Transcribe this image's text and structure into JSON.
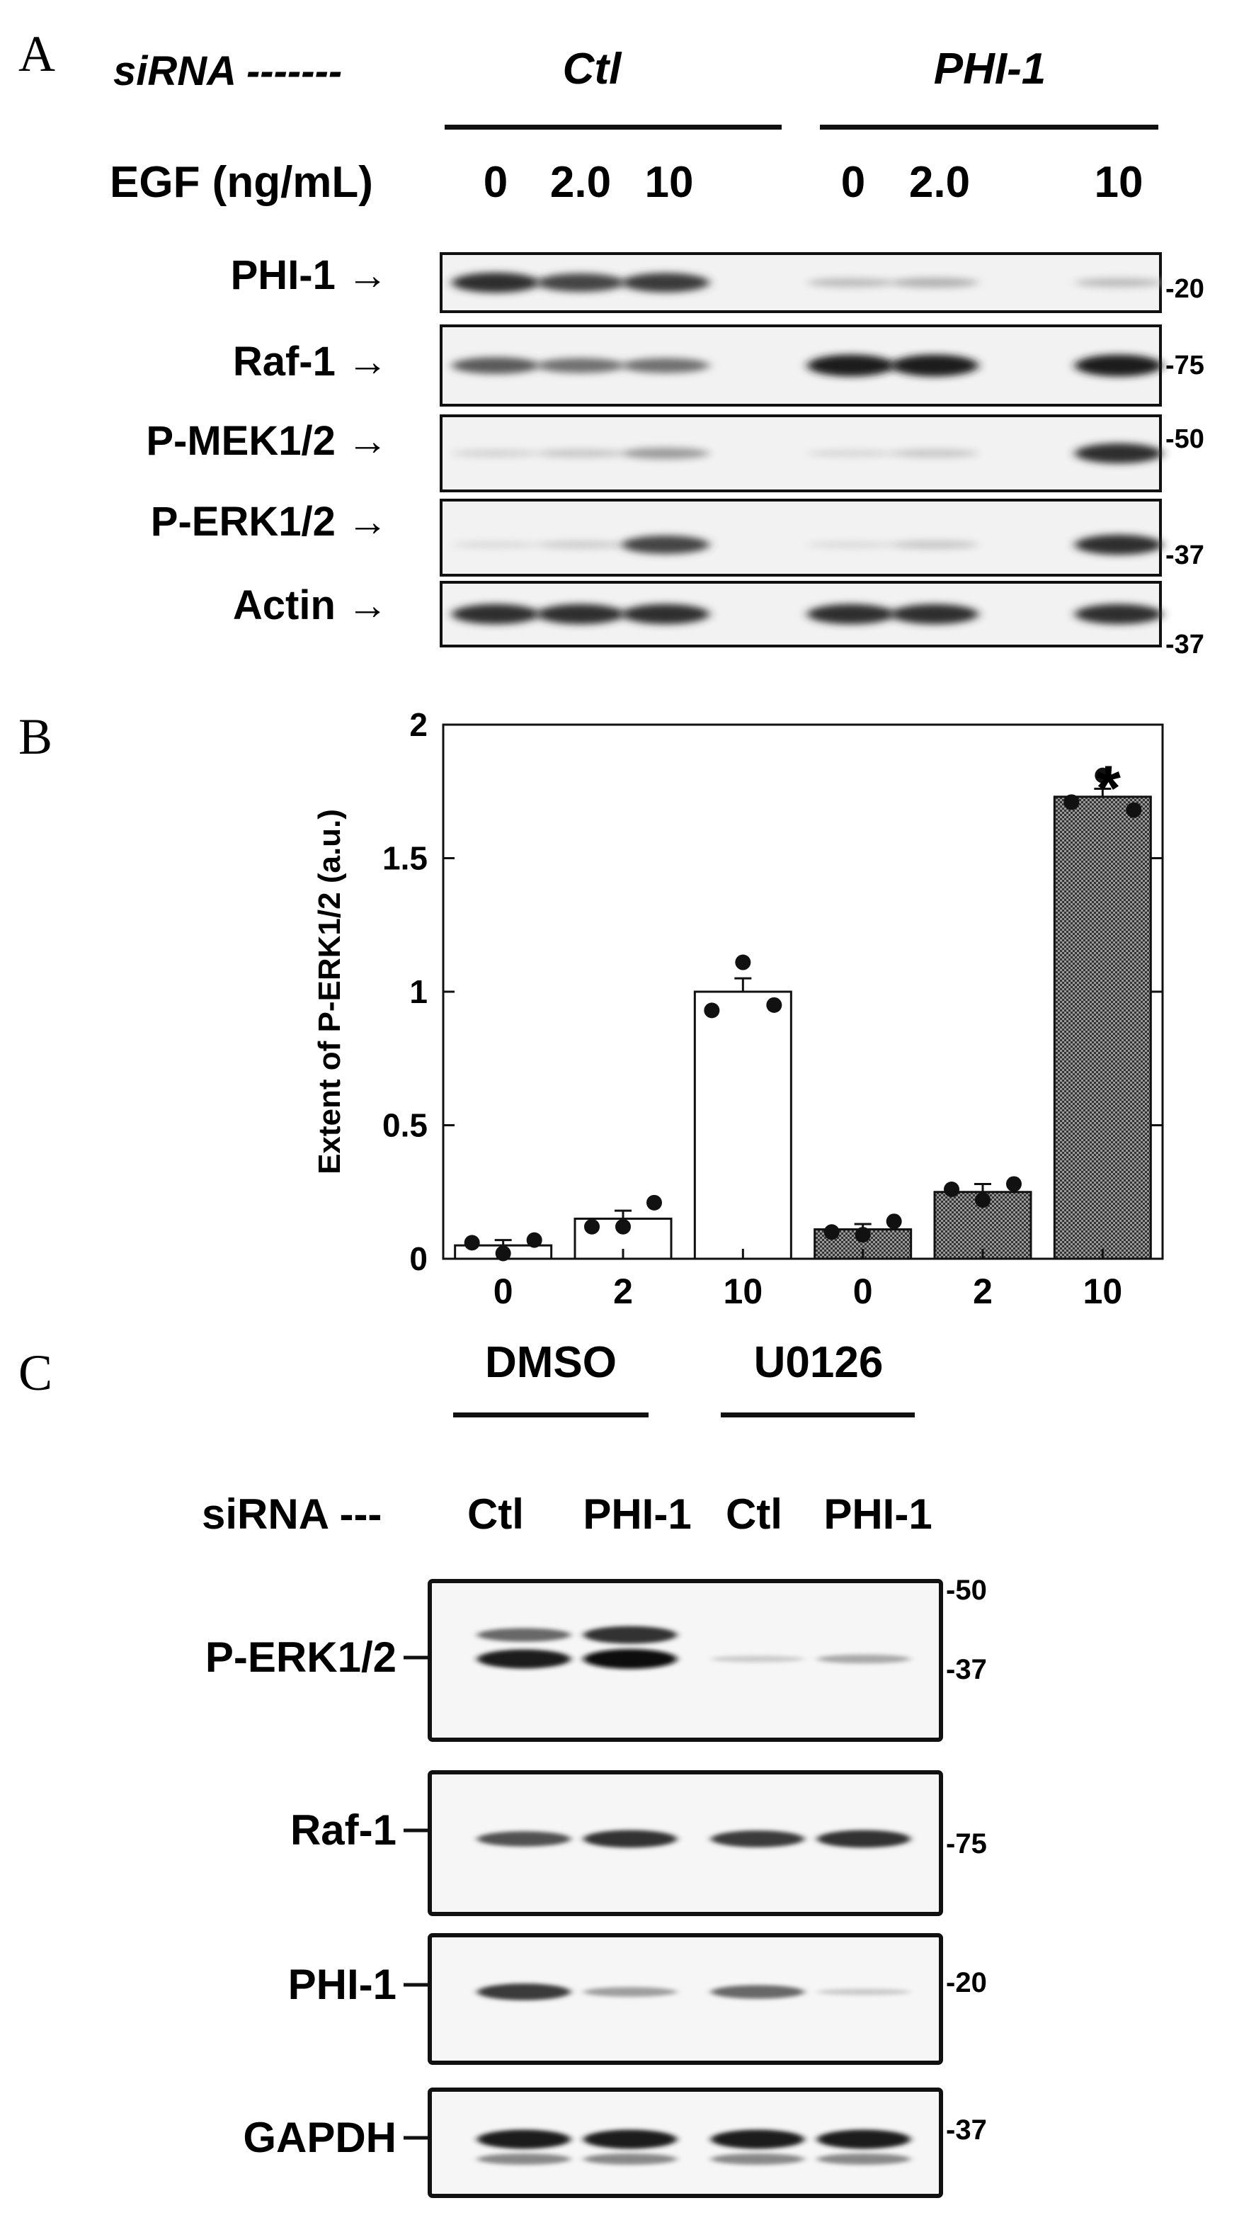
{
  "panel_a": {
    "letter": "A",
    "sirna_label": "siRNA -------",
    "groups": [
      "Ctl",
      "PHI-1"
    ],
    "egf_label": "EGF (ng/mL)",
    "egf_values": [
      "0",
      "2.0",
      "10",
      "0",
      "2.0",
      "10"
    ],
    "blots": [
      {
        "label": "PHI-1 →",
        "mw": [
          "-20"
        ]
      },
      {
        "label": "Raf-1 →",
        "mw": [
          "-75"
        ]
      },
      {
        "label": "P-MEK1/2 →",
        "mw": [
          "-50"
        ]
      },
      {
        "label": "P-ERK1/2 →",
        "mw": [
          "-37"
        ]
      },
      {
        "label": "Actin →",
        "mw": [
          "-37"
        ]
      }
    ],
    "band_intensity": {
      "PHI-1": [
        0.85,
        0.75,
        0.8,
        0.2,
        0.25,
        0.2
      ],
      "Raf-1": [
        0.65,
        0.55,
        0.55,
        0.95,
        0.95,
        0.95
      ],
      "P-MEK1/2": [
        0.1,
        0.15,
        0.35,
        0.08,
        0.15,
        0.85
      ],
      "P-ERK1/2": [
        0.06,
        0.12,
        0.75,
        0.06,
        0.15,
        0.85
      ],
      "Actin": [
        0.85,
        0.85,
        0.85,
        0.85,
        0.85,
        0.85
      ]
    }
  },
  "panel_b": {
    "letter": "B",
    "significance_marker": "*"
  },
  "chart_data": {
    "type": "bar",
    "categories": [
      "0",
      "2",
      "10",
      "0",
      "2",
      "10"
    ],
    "values": [
      0.05,
      0.15,
      1.0,
      0.11,
      0.25,
      1.73
    ],
    "errors": [
      0.02,
      0.03,
      0.05,
      0.02,
      0.03,
      0.03
    ],
    "points": [
      [
        0.06,
        0.02,
        0.07
      ],
      [
        0.12,
        0.12,
        0.21
      ],
      [
        0.93,
        1.11,
        0.95
      ],
      [
        0.1,
        0.09,
        0.14
      ],
      [
        0.26,
        0.22,
        0.28
      ],
      [
        1.71,
        1.81,
        1.68
      ]
    ],
    "fills": [
      "white",
      "white",
      "white",
      "dotted",
      "dotted",
      "dotted"
    ],
    "title": "",
    "xlabel": "",
    "ylabel": "Extent of P-ERK1/2 (a.u.)",
    "ylim": [
      0,
      2
    ],
    "yticks": [
      "0",
      "0.5",
      "1",
      "1.5",
      "2"
    ],
    "grid": false,
    "significant_index": 5
  },
  "panel_c": {
    "letter": "C",
    "treatments": [
      "DMSO",
      "U0126"
    ],
    "sirna_label": "siRNA ---",
    "lanes": [
      "Ctl",
      "PHI-1",
      "Ctl",
      "PHI-1"
    ],
    "blots": [
      {
        "label": "P-ERK1/2",
        "mw": [
          "-50",
          "-37"
        ]
      },
      {
        "label": "Raf-1",
        "mw": [
          "-75"
        ]
      },
      {
        "label": "PHI-1",
        "mw": [
          "-20"
        ]
      },
      {
        "label": "GAPDH",
        "mw": [
          "-37"
        ]
      }
    ]
  }
}
